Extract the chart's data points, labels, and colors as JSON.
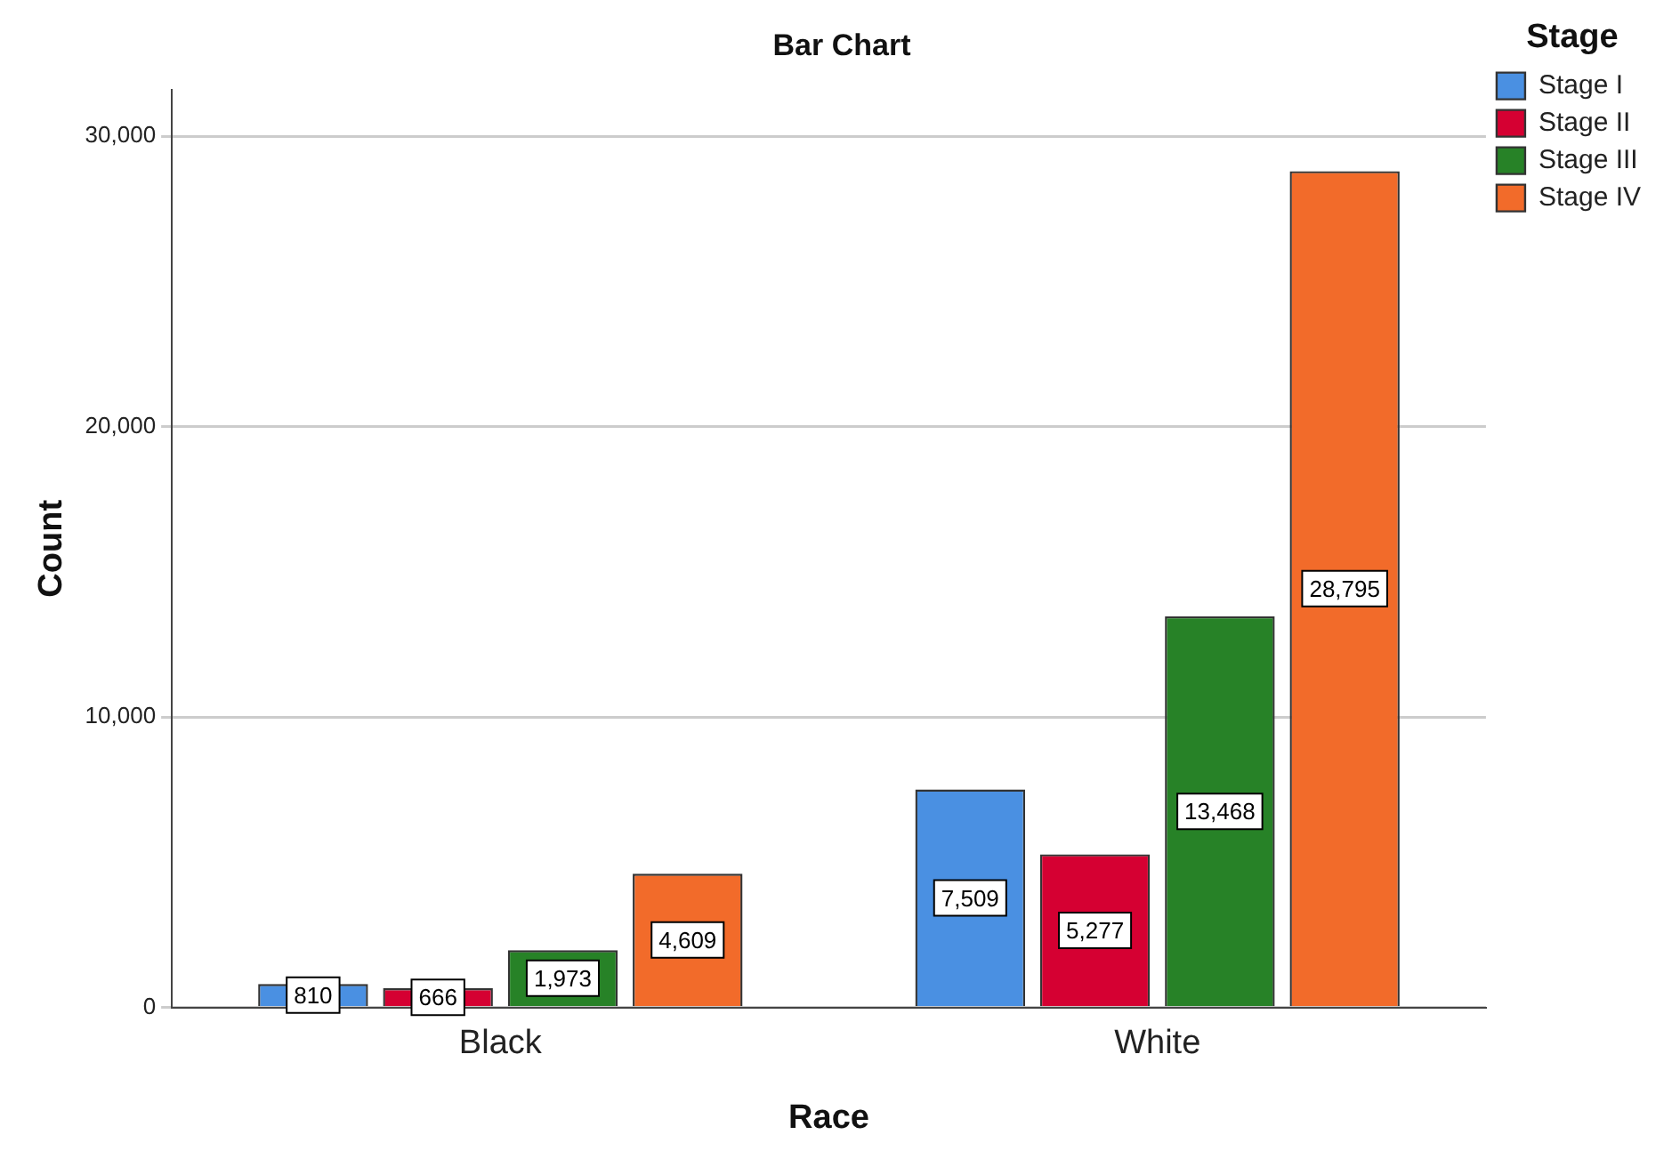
{
  "chart_data": {
    "type": "bar",
    "title": "Bar Chart",
    "xlabel": "Race",
    "ylabel": "Count",
    "legend_title": "Stage",
    "categories": [
      "Black",
      "White"
    ],
    "series": [
      {
        "name": "Stage I",
        "color": "#4a90e2",
        "values": [
          810,
          7509
        ],
        "value_labels": [
          "810",
          "7,509"
        ]
      },
      {
        "name": "Stage II",
        "color": "#d50032",
        "values": [
          666,
          5277
        ],
        "value_labels": [
          "666",
          "5,277"
        ]
      },
      {
        "name": "Stage III",
        "color": "#278227",
        "values": [
          1973,
          13468
        ],
        "value_labels": [
          "1,973",
          "13,468"
        ]
      },
      {
        "name": "Stage IV",
        "color": "#f26b2a",
        "values": [
          4609,
          28795
        ],
        "value_labels": [
          "4,609",
          "28,795"
        ]
      }
    ],
    "ylim": [
      0,
      31600
    ],
    "yticks": [
      {
        "value": 0,
        "label": "0"
      },
      {
        "value": 10000,
        "label": "10,000"
      },
      {
        "value": 20000,
        "label": "20,000"
      },
      {
        "value": 30000,
        "label": "30,000"
      }
    ],
    "grid": "y",
    "legend": "top right"
  }
}
